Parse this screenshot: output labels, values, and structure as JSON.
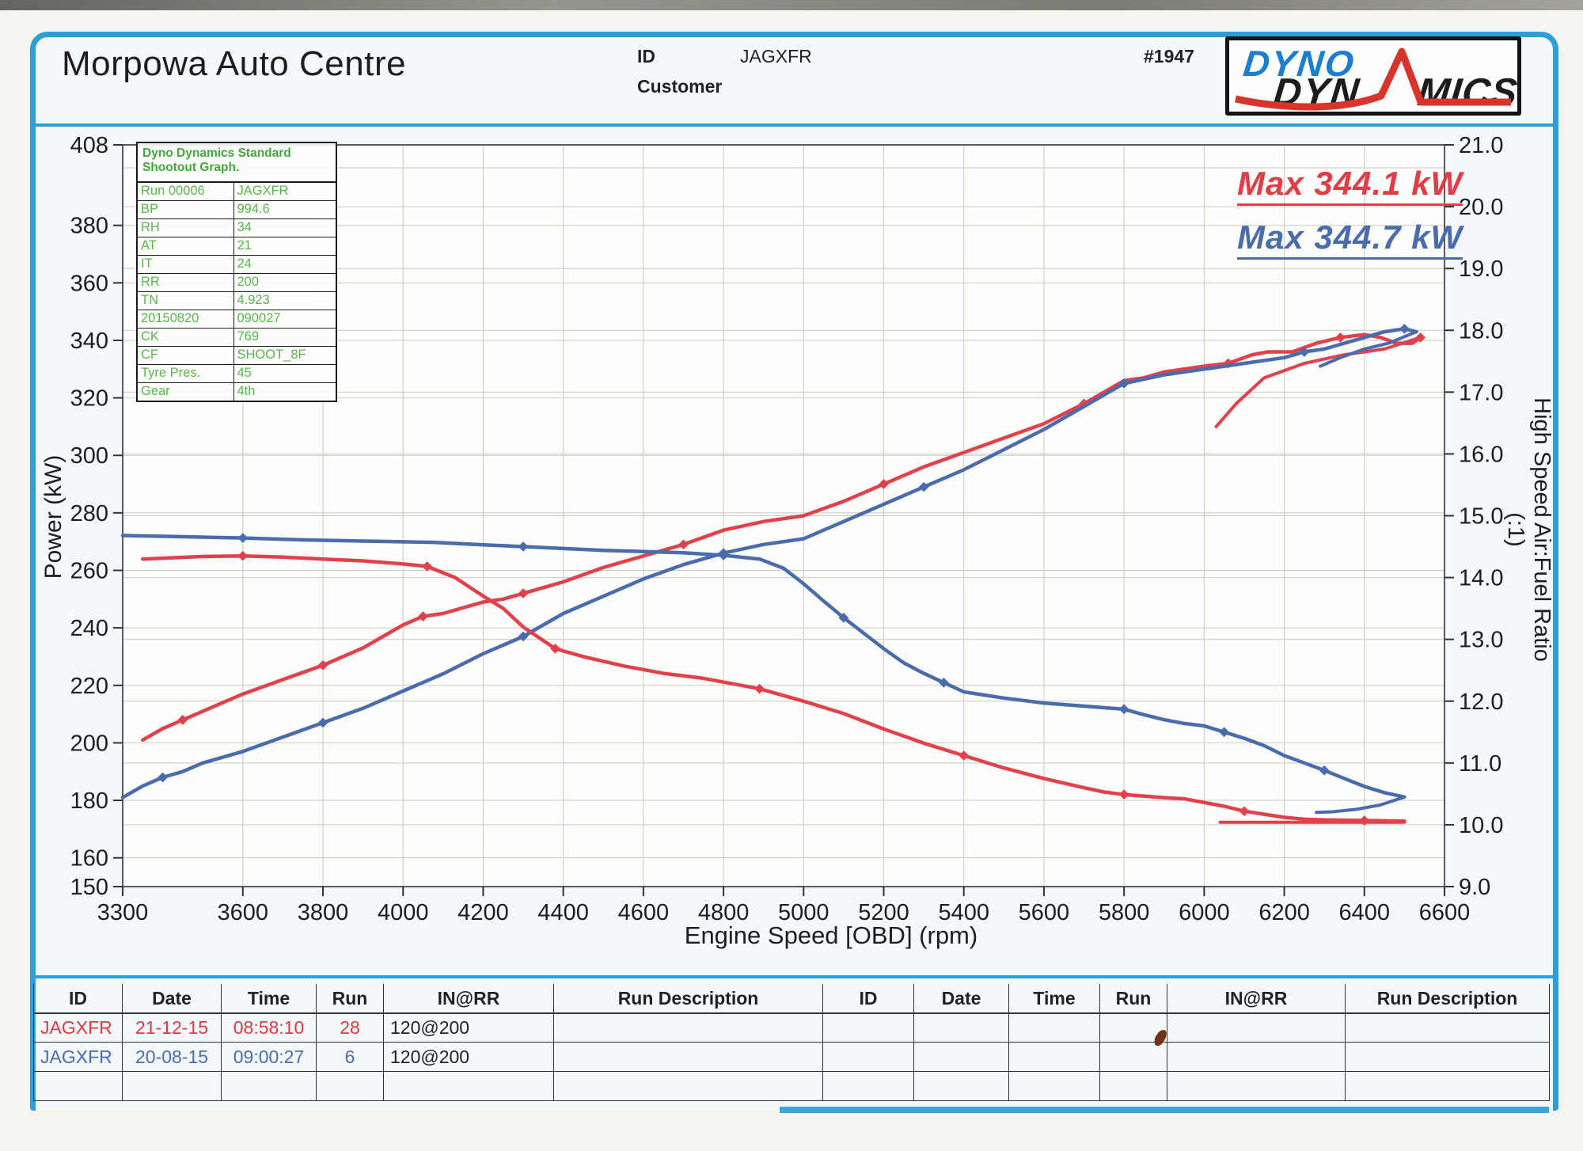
{
  "header": {
    "title": "Morpowa Auto Centre",
    "id_label": "ID",
    "id_value": "JAGXFR",
    "customer_label": "Customer",
    "customer_value": "",
    "sheet_number": "#1947",
    "logo": {
      "line1": "DYNO",
      "line2a": "DYN",
      "line2b": "MICS"
    }
  },
  "info_box": {
    "title": "Dyno Dynamics Standard Shootout Graph.",
    "rows": [
      [
        "Run 00006",
        "JAGXFR"
      ],
      [
        "BP",
        "994.6"
      ],
      [
        "RH",
        "34"
      ],
      [
        "AT",
        "21"
      ],
      [
        "IT",
        "24"
      ],
      [
        "RR",
        "200"
      ],
      [
        "TN",
        "4.923"
      ],
      [
        "20150820",
        "090027"
      ],
      [
        "CK",
        "769"
      ],
      [
        "CF",
        "SHOOT_8F"
      ],
      [
        "Tyre Pres.",
        "45"
      ],
      [
        "Gear",
        "4th"
      ]
    ]
  },
  "annotations": {
    "max_red": "Max 344.1 kW",
    "max_blue": "Max 344.7 kW"
  },
  "colors": {
    "red": "#e2414c",
    "blue": "#4a6cac",
    "grid": "#c5cbc5",
    "frame_blue": "#2e9ed7",
    "green_text": "#58b84b",
    "plot_bg": "#fdfdfb"
  },
  "chart_data": {
    "type": "line",
    "title": "Dyno Dynamics Standard Shootout Graph",
    "xlabel": "Engine Speed [OBD] (rpm)",
    "ylabel_left": "Power (kW)",
    "ylabel_right": "High Speed Air:Fuel Ratio (:1)",
    "x_range": [
      3300,
      6600
    ],
    "y_left_range": [
      150,
      408
    ],
    "y_right_range": [
      9.0,
      21.0
    ],
    "x_ticks": [
      3300,
      3600,
      3800,
      4000,
      4200,
      4400,
      4600,
      4800,
      5000,
      5200,
      5400,
      5600,
      5800,
      6000,
      6200,
      6400,
      6600
    ],
    "y_left_ticks": [
      408,
      380,
      360,
      340,
      320,
      300,
      280,
      260,
      240,
      220,
      200,
      180,
      160,
      150
    ],
    "y_right_ticks": [
      "21.0",
      "20.0",
      "19.0",
      "18.0",
      "17.0",
      "16.0",
      "15.0",
      "14.0",
      "13.0",
      "12.0",
      "11.0",
      "10.0",
      "9.0"
    ],
    "grid": true,
    "legend_position": "none",
    "series": [
      {
        "name": "power-run-28-red",
        "run": "28",
        "max_label": "Max 344.1 kW",
        "color": "red",
        "axis": "left",
        "points": [
          [
            3350,
            201
          ],
          [
            3400,
            205
          ],
          [
            3450,
            208
          ],
          [
            3500,
            211
          ],
          [
            3550,
            214
          ],
          [
            3600,
            217
          ],
          [
            3700,
            222
          ],
          [
            3800,
            227
          ],
          [
            3850,
            230
          ],
          [
            3900,
            233
          ],
          [
            3950,
            237
          ],
          [
            4000,
            241
          ],
          [
            4050,
            244
          ],
          [
            4100,
            245
          ],
          [
            4150,
            247
          ],
          [
            4200,
            249
          ],
          [
            4250,
            250
          ],
          [
            4300,
            252
          ],
          [
            4350,
            254
          ],
          [
            4400,
            256
          ],
          [
            4500,
            261
          ],
          [
            4600,
            265
          ],
          [
            4700,
            269
          ],
          [
            4800,
            274
          ],
          [
            4900,
            277
          ],
          [
            5000,
            279
          ],
          [
            5100,
            284
          ],
          [
            5200,
            290
          ],
          [
            5300,
            296
          ],
          [
            5400,
            301
          ],
          [
            5500,
            306
          ],
          [
            5600,
            311
          ],
          [
            5700,
            318
          ],
          [
            5800,
            326
          ],
          [
            5850,
            327
          ],
          [
            5900,
            329
          ],
          [
            6000,
            331
          ],
          [
            6060,
            332
          ],
          [
            6120,
            335
          ],
          [
            6160,
            336
          ],
          [
            6220,
            336
          ],
          [
            6280,
            339
          ],
          [
            6340,
            341
          ],
          [
            6400,
            342
          ],
          [
            6440,
            341
          ],
          [
            6480,
            339
          ],
          [
            6520,
            339
          ],
          [
            6540,
            341
          ]
        ],
        "tail": [
          [
            6540,
            341
          ],
          [
            6450,
            337
          ],
          [
            6350,
            335
          ],
          [
            6250,
            332
          ],
          [
            6150,
            327
          ],
          [
            6080,
            318
          ],
          [
            6030,
            310
          ]
        ]
      },
      {
        "name": "power-run-6-blue",
        "run": "6",
        "max_label": "Max 344.7 kW",
        "color": "blue",
        "axis": "left",
        "points": [
          [
            3300,
            181
          ],
          [
            3350,
            185
          ],
          [
            3400,
            188
          ],
          [
            3450,
            190
          ],
          [
            3500,
            193
          ],
          [
            3600,
            197
          ],
          [
            3700,
            202
          ],
          [
            3800,
            207
          ],
          [
            3900,
            212
          ],
          [
            4000,
            218
          ],
          [
            4100,
            224
          ],
          [
            4200,
            231
          ],
          [
            4300,
            237
          ],
          [
            4400,
            245
          ],
          [
            4500,
            251
          ],
          [
            4600,
            257
          ],
          [
            4700,
            262
          ],
          [
            4800,
            266
          ],
          [
            4900,
            269
          ],
          [
            5000,
            271
          ],
          [
            5100,
            277
          ],
          [
            5200,
            283
          ],
          [
            5300,
            289
          ],
          [
            5400,
            295
          ],
          [
            5500,
            302
          ],
          [
            5600,
            309
          ],
          [
            5700,
            317
          ],
          [
            5800,
            325
          ],
          [
            5900,
            328
          ],
          [
            6000,
            330
          ],
          [
            6100,
            332
          ],
          [
            6200,
            334
          ],
          [
            6250,
            336
          ],
          [
            6300,
            337
          ],
          [
            6350,
            339
          ],
          [
            6400,
            341
          ],
          [
            6450,
            343
          ],
          [
            6500,
            344
          ],
          [
            6530,
            343
          ]
        ],
        "tail": [
          [
            6530,
            343
          ],
          [
            6460,
            339
          ],
          [
            6400,
            337
          ],
          [
            6340,
            334
          ],
          [
            6290,
            331
          ]
        ]
      },
      {
        "name": "afr-run-28-red",
        "run": "28",
        "color": "red",
        "axis": "right",
        "points": [
          [
            3350,
            14.3
          ],
          [
            3500,
            14.34
          ],
          [
            3600,
            14.35
          ],
          [
            3700,
            14.33
          ],
          [
            3800,
            14.3
          ],
          [
            3900,
            14.27
          ],
          [
            4000,
            14.22
          ],
          [
            4060,
            14.18
          ],
          [
            4130,
            14.0
          ],
          [
            4200,
            13.7
          ],
          [
            4250,
            13.5
          ],
          [
            4300,
            13.2
          ],
          [
            4380,
            12.85
          ],
          [
            4450,
            12.72
          ],
          [
            4550,
            12.57
          ],
          [
            4650,
            12.45
          ],
          [
            4750,
            12.37
          ],
          [
            4890,
            12.2
          ],
          [
            5000,
            12.0
          ],
          [
            5100,
            11.8
          ],
          [
            5200,
            11.55
          ],
          [
            5300,
            11.32
          ],
          [
            5400,
            11.12
          ],
          [
            5500,
            10.92
          ],
          [
            5600,
            10.75
          ],
          [
            5700,
            10.6
          ],
          [
            5750,
            10.53
          ],
          [
            5800,
            10.49
          ],
          [
            5900,
            10.44
          ],
          [
            5950,
            10.42
          ],
          [
            6000,
            10.36
          ],
          [
            6050,
            10.3
          ],
          [
            6100,
            10.22
          ],
          [
            6150,
            10.17
          ],
          [
            6200,
            10.12
          ],
          [
            6250,
            10.09
          ],
          [
            6300,
            10.08
          ],
          [
            6400,
            10.07
          ],
          [
            6500,
            10.06
          ]
        ],
        "tail": [
          [
            6500,
            10.04
          ],
          [
            6350,
            10.04
          ],
          [
            6200,
            10.04
          ],
          [
            6100,
            10.04
          ],
          [
            6040,
            10.04
          ]
        ]
      },
      {
        "name": "afr-run-6-blue",
        "run": "6",
        "color": "blue",
        "axis": "right",
        "points": [
          [
            3300,
            14.68
          ],
          [
            3450,
            14.66
          ],
          [
            3600,
            14.64
          ],
          [
            3750,
            14.61
          ],
          [
            3900,
            14.59
          ],
          [
            4076,
            14.57
          ],
          [
            4200,
            14.53
          ],
          [
            4300,
            14.5
          ],
          [
            4400,
            14.47
          ],
          [
            4500,
            14.44
          ],
          [
            4600,
            14.42
          ],
          [
            4700,
            14.4
          ],
          [
            4800,
            14.36
          ],
          [
            4890,
            14.3
          ],
          [
            4950,
            14.15
          ],
          [
            5000,
            13.9
          ],
          [
            5050,
            13.62
          ],
          [
            5100,
            13.35
          ],
          [
            5150,
            13.1
          ],
          [
            5200,
            12.85
          ],
          [
            5250,
            12.62
          ],
          [
            5300,
            12.45
          ],
          [
            5350,
            12.3
          ],
          [
            5400,
            12.15
          ],
          [
            5500,
            12.05
          ],
          [
            5600,
            11.97
          ],
          [
            5700,
            11.92
          ],
          [
            5800,
            11.87
          ],
          [
            5850,
            11.78
          ],
          [
            5900,
            11.7
          ],
          [
            5950,
            11.64
          ],
          [
            6000,
            11.6
          ],
          [
            6050,
            11.5
          ],
          [
            6100,
            11.4
          ],
          [
            6150,
            11.28
          ],
          [
            6200,
            11.12
          ],
          [
            6250,
            11.0
          ],
          [
            6300,
            10.88
          ],
          [
            6350,
            10.75
          ],
          [
            6400,
            10.62
          ],
          [
            6450,
            10.52
          ],
          [
            6500,
            10.45
          ]
        ],
        "tail": [
          [
            6500,
            10.45
          ],
          [
            6440,
            10.32
          ],
          [
            6380,
            10.25
          ],
          [
            6320,
            10.21
          ],
          [
            6280,
            10.2
          ]
        ]
      }
    ]
  },
  "run_table": {
    "headers": [
      "ID",
      "Date",
      "Time",
      "Run",
      "IN@RR",
      "Run Description"
    ],
    "left_rows": [
      {
        "id": "JAGXFR",
        "date": "21-12-15",
        "time": "08:58:10",
        "run": "28",
        "in_rr": "120@200",
        "desc": "",
        "color": "red"
      },
      {
        "id": "JAGXFR",
        "date": "20-08-15",
        "time": "09:00:27",
        "run": "6",
        "in_rr": "120@200",
        "desc": "",
        "color": "blue"
      },
      {
        "id": "",
        "date": "",
        "time": "",
        "run": "",
        "in_rr": "",
        "desc": "",
        "color": "none"
      }
    ],
    "right_rows": [
      {
        "id": "",
        "date": "",
        "time": "",
        "run": "",
        "in_rr": "",
        "desc": "",
        "color": "none"
      },
      {
        "id": "",
        "date": "",
        "time": "",
        "run": "",
        "in_rr": "",
        "desc": "",
        "color": "none"
      },
      {
        "id": "",
        "date": "",
        "time": "",
        "run": "",
        "in_rr": "",
        "desc": "",
        "color": "none"
      }
    ]
  }
}
